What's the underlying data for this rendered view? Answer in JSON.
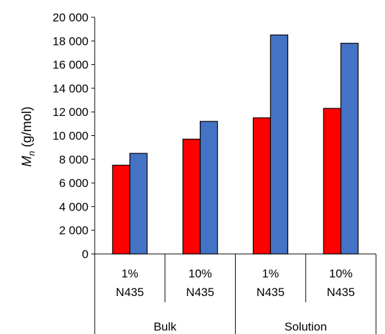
{
  "chart_data": {
    "type": "bar",
    "title": "",
    "xlabel": "",
    "ylabel": {
      "symbol": "M",
      "subscript": "n",
      "unit": " (g/mol)"
    },
    "ylim": [
      0,
      20000
    ],
    "yticks": [
      0,
      2000,
      4000,
      6000,
      8000,
      10000,
      12000,
      14000,
      16000,
      18000,
      20000
    ],
    "ytick_labels": [
      "0",
      "2 000",
      "4 000",
      "6 000",
      "8 000",
      "10 000",
      "12 000",
      "14 000",
      "16 000",
      "18 000",
      "20 000"
    ],
    "grid": false,
    "legend": "none",
    "categories": [
      {
        "line1": "1%",
        "line2": "N435",
        "group": "Bulk"
      },
      {
        "line1": "10%",
        "line2": "N435",
        "group": "Bulk"
      },
      {
        "line1": "1%",
        "line2": "N435",
        "group": "Solution"
      },
      {
        "line1": "10%",
        "line2": "N435",
        "group": "Solution"
      }
    ],
    "groups": [
      "Bulk",
      "Solution"
    ],
    "series": [
      {
        "color": "#ff0000",
        "values": [
          7500,
          9700,
          11500,
          12300
        ]
      },
      {
        "color": "#4472c4",
        "values": [
          8500,
          11200,
          18500,
          17800
        ]
      }
    ]
  }
}
